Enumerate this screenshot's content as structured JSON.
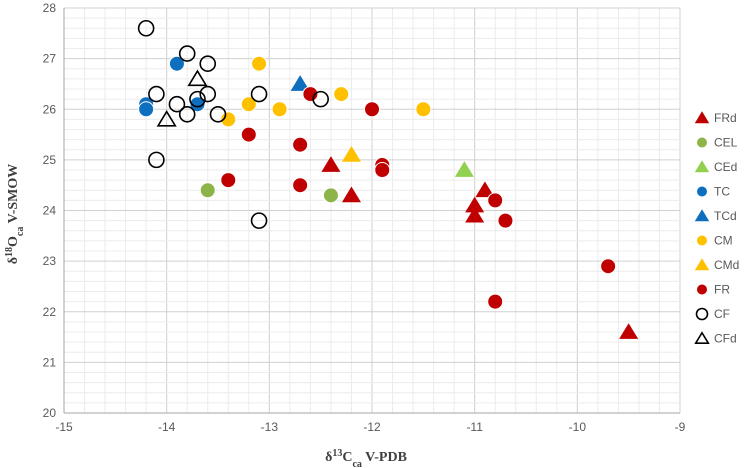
{
  "chart_data": {
    "type": "scatter",
    "xlabel": "δ13Cca V-PDB",
    "ylabel": "δ18Oca V-SMOW",
    "xlim": [
      -15,
      -9
    ],
    "ylim": [
      20,
      28
    ],
    "x_ticks": [
      "-15",
      "-14",
      "-13",
      "-12",
      "-11",
      "-10",
      "-9"
    ],
    "y_ticks": [
      "20",
      "21",
      "22",
      "23",
      "24",
      "25",
      "26",
      "27",
      "28"
    ],
    "grid": true,
    "legend_position": "right",
    "series": [
      {
        "name": "FRd",
        "marker": "triangle",
        "filled": true,
        "color": "#c00000",
        "points": [
          [
            -12.4,
            24.9
          ],
          [
            -12.2,
            24.3
          ],
          [
            -10.9,
            24.4
          ],
          [
            -11.0,
            24.1
          ],
          [
            -11.0,
            23.9
          ],
          [
            -9.5,
            21.6
          ]
        ]
      },
      {
        "name": "CEL",
        "marker": "circle",
        "filled": true,
        "color": "#8db449",
        "points": [
          [
            -13.6,
            24.4
          ],
          [
            -12.4,
            24.3
          ]
        ]
      },
      {
        "name": "CEd",
        "marker": "triangle",
        "filled": true,
        "color": "#92d050",
        "points": [
          [
            -11.1,
            24.8
          ]
        ]
      },
      {
        "name": "TC",
        "marker": "circle",
        "filled": true,
        "color": "#0e6fbe",
        "points": [
          [
            -14.2,
            26.1
          ],
          [
            -14.2,
            26.0
          ],
          [
            -13.9,
            26.9
          ],
          [
            -13.7,
            26.1
          ]
        ]
      },
      {
        "name": "TCd",
        "marker": "triangle",
        "filled": true,
        "color": "#0e6fbe",
        "points": [
          [
            -12.7,
            26.5
          ]
        ]
      },
      {
        "name": "CM",
        "marker": "circle",
        "filled": true,
        "color": "#ffc000",
        "points": [
          [
            -13.4,
            25.8
          ],
          [
            -13.2,
            26.1
          ],
          [
            -13.1,
            26.9
          ],
          [
            -12.9,
            26.0
          ],
          [
            -12.3,
            26.3
          ],
          [
            -11.5,
            26.0
          ]
        ]
      },
      {
        "name": "CMd",
        "marker": "triangle",
        "filled": true,
        "color": "#ffc000",
        "points": [
          [
            -12.2,
            25.1
          ]
        ]
      },
      {
        "name": "FR",
        "marker": "circle",
        "filled": true,
        "color": "#c00000",
        "points": [
          [
            -13.4,
            24.6
          ],
          [
            -13.2,
            25.5
          ],
          [
            -12.7,
            25.3
          ],
          [
            -12.7,
            24.5
          ],
          [
            -12.6,
            26.3
          ],
          [
            -12.0,
            26.0
          ],
          [
            -11.9,
            24.9
          ],
          [
            -11.9,
            24.8
          ],
          [
            -10.8,
            24.2
          ],
          [
            -10.7,
            23.8
          ],
          [
            -10.8,
            22.2
          ],
          [
            -9.7,
            22.9
          ]
        ]
      },
      {
        "name": "CF",
        "marker": "circle",
        "filled": false,
        "color": "#000000",
        "points": [
          [
            -14.2,
            27.6
          ],
          [
            -14.1,
            26.3
          ],
          [
            -13.9,
            26.1
          ],
          [
            -13.8,
            27.1
          ],
          [
            -13.6,
            26.9
          ],
          [
            -13.6,
            26.3
          ],
          [
            -13.7,
            26.2
          ],
          [
            -13.8,
            25.9
          ],
          [
            -13.5,
            25.9
          ],
          [
            -14.1,
            25.0
          ],
          [
            -13.1,
            26.3
          ],
          [
            -13.1,
            23.8
          ],
          [
            -12.5,
            26.2
          ]
        ]
      },
      {
        "name": "CFd",
        "marker": "triangle",
        "filled": false,
        "color": "#000000",
        "points": [
          [
            -13.7,
            26.6
          ],
          [
            -14.0,
            25.8
          ]
        ]
      }
    ]
  }
}
